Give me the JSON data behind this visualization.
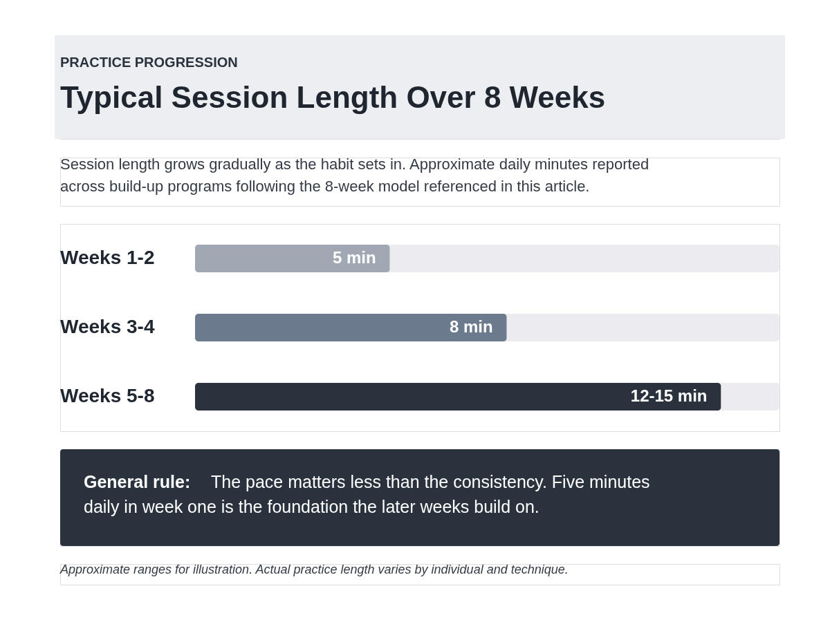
{
  "chart_data": {
    "type": "bar",
    "orientation": "horizontal",
    "title": "Typical Session Length Over 8 Weeks",
    "subtitle": "Session length grows gradually as the habit sets in. Approximate daily minutes reported across build-up programs following the 8-week model referenced in this article.",
    "categories": [
      "Weeks 1-2",
      "Weeks 3-4",
      "Weeks 5-8"
    ],
    "values": [
      5,
      8,
      13.5
    ],
    "value_labels": [
      "5 min",
      "8 min",
      "12-15 min"
    ],
    "colors": [
      "#a0a8b4",
      "#6b7a8c",
      "#2a333d"
    ],
    "xlim": [
      0,
      15
    ],
    "annotations": [
      "PRACTICE PROGRESSION",
      "General rule:",
      "The pace matters less than the consistency. Five minutes daily in week one is the foundation the later weeks build on.",
      "Approximate ranges for illustration. Actual practice length varies by individual and technique."
    ]
  }
}
